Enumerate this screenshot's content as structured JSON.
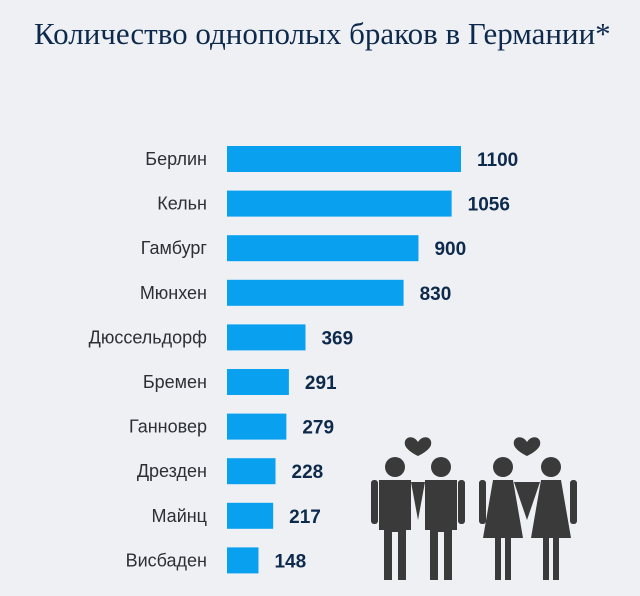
{
  "title": "Количество однополых браков в Германии*",
  "chart_data": {
    "type": "bar",
    "orientation": "horizontal",
    "categories": [
      "Берлин",
      "Кельн",
      "Гамбург",
      "Мюнхен",
      "Дюссельдорф",
      "Бремен",
      "Ганновер",
      "Дрезден",
      "Майнц",
      "Висбаден"
    ],
    "values": [
      1100,
      1056,
      900,
      830,
      369,
      291,
      279,
      228,
      217,
      148
    ],
    "value_labels": [
      "1100",
      "1056",
      "900",
      "830",
      "369",
      "291",
      "279",
      "228",
      "217",
      "148"
    ],
    "title": "Количество однополых браков в Германии*",
    "xlabel": "",
    "ylabel": "",
    "xlim": [
      0,
      1100
    ],
    "grid": false,
    "bar_color": "#0aa0f0"
  },
  "colors": {
    "background": "#eef0f4",
    "title": "#0d2a4c",
    "figures": "#3a3a3a"
  },
  "illustration": {
    "icon": "couples-with-hearts-icon"
  }
}
